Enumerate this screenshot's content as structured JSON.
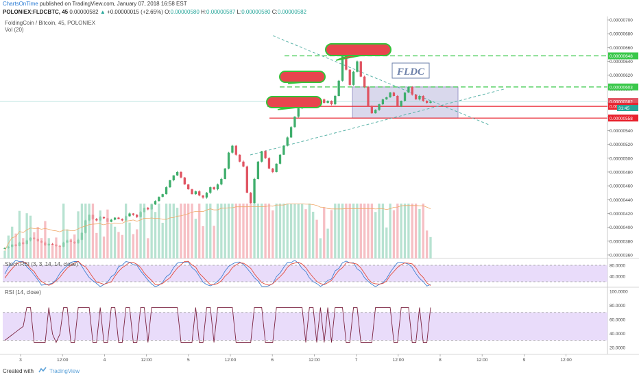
{
  "header": {
    "publisher": "ChartsOnTime",
    "published_text": "published on TradingView.com, January 07, 2018 16:58 EST",
    "symbol": "POLONIEX:FLDCBTC, 45",
    "price": "0.00000582",
    "change": "+0.00000015 (+2.65%)",
    "open_label": "O:",
    "open": "0.00000580",
    "high_label": "H:",
    "high": "0.00000587",
    "low_label": "L:",
    "low": "0.00000580",
    "close_label": "C:",
    "close": "0.00000582"
  },
  "legend": {
    "pair": "FoldingCoin / Bitcoin, 45, POLONIEX",
    "vol": "Vol (20)",
    "stoch": "Stoch RSI (3, 3, 14, 14, close)",
    "rsi": "RSI (14, close)"
  },
  "annotation": {
    "fldc_label": "FLDC",
    "time_badge": "31:45"
  },
  "footer": {
    "created_with": "Created with",
    "brand": "TradingView"
  },
  "colors": {
    "up": "#26a69a",
    "down": "#ef5350",
    "upBody": "#3fae6c",
    "downBody": "#e05462",
    "green_line": "#39c84a",
    "red_line": "#e8232e",
    "trend": "#5ab3a8",
    "rect_fill": "#c9c8e4",
    "osc_fill": "#e9dcfa",
    "stoch_k": "#3f7fd1",
    "stoch_d": "#e34b3b",
    "rsi_line": "#7b2340"
  },
  "chart_data": [
    {
      "type": "candlestick",
      "title": "FoldingCoin / Bitcoin, 45, POLONIEX",
      "x_ticks": [
        "3",
        "12:00",
        "4",
        "12:00",
        "5",
        "12:00",
        "6",
        "12:00",
        "7",
        "12:00",
        "8",
        "12:00",
        "9",
        "12:00"
      ],
      "y_ticks": [
        "0.00000700",
        "0.00000680",
        "0.00000660",
        "0.00000640",
        "0.00000620",
        "0.00000600",
        "0.00000580",
        "0.00000560",
        "0.00000540",
        "0.00000520",
        "0.00000500",
        "0.00000480",
        "0.00000460",
        "0.00000440",
        "0.00000420",
        "0.00000400",
        "0.00000380",
        "0.00000360"
      ],
      "ylim": [
        3.55e-06,
        7.05e-06
      ],
      "price_labels": [
        {
          "value": 6.48e-06,
          "text": "0.00000648",
          "color": "#39c84a"
        },
        {
          "value": 6.03e-06,
          "text": "0.00000603",
          "color": "#39c84a"
        },
        {
          "value": 5.82e-06,
          "text": "0.00000582",
          "color": "#e05462"
        },
        {
          "value": 5.75e-06,
          "text": "0.00000575",
          "color": "#e8232e"
        },
        {
          "value": 5.58e-06,
          "text": "0.00000558",
          "color": "#e8232e"
        }
      ],
      "horizontal_levels": [
        {
          "value": 6.48e-06,
          "style": "dashed",
          "color": "green"
        },
        {
          "value": 6.03e-06,
          "style": "dashed",
          "color": "green"
        },
        {
          "value": 5.75e-06,
          "style": "solid",
          "color": "red"
        },
        {
          "value": 5.58e-06,
          "style": "solid",
          "color": "red"
        }
      ],
      "closes": [
        3.7e-06,
        3.72e-06,
        3.75e-06,
        3.73e-06,
        3.78e-06,
        3.76e-06,
        3.81e-06,
        3.85e-06,
        3.83e-06,
        3.8e-06,
        3.78e-06,
        3.74e-06,
        3.76e-06,
        3.75e-06,
        3.73e-06,
        3.72e-06,
        3.78e-06,
        3.81e-06,
        3.79e-06,
        3.77e-06,
        3.82e-06,
        3.92e-06,
        4.1e-06,
        4.18e-06,
        4.12e-06,
        4.1e-06,
        4.15e-06,
        4.13e-06,
        4.08e-06,
        4.11e-06,
        4.14e-06,
        4.12e-06,
        4.1e-06,
        4.16e-06,
        4.2e-06,
        4.18e-06,
        4.15e-06,
        4.22e-06,
        4.28e-06,
        4.26e-06,
        4.33e-06,
        4.38e-06,
        4.44e-06,
        4.48e-06,
        4.58e-06,
        4.68e-06,
        4.75e-06,
        4.8e-06,
        4.72e-06,
        4.62e-06,
        4.55e-06,
        4.48e-06,
        4.52e-06,
        4.46e-06,
        4.43e-06,
        4.5e-06,
        4.58e-06,
        4.55e-06,
        4.62e-06,
        4.7e-06,
        4.85e-06,
        5.08e-06,
        5.18e-06,
        5.05e-06,
        4.95e-06,
        4.88e-06,
        4.5e-06,
        4.35e-06,
        4.7e-06,
        4.95e-06,
        5.1e-06,
        5e-06,
        4.85e-06,
        4.8e-06,
        4.92e-06,
        5.05e-06,
        5.18e-06,
        5.3e-06,
        5.45e-06,
        5.6e-06,
        5.72e-06,
        5.8e-06,
        5.75e-06,
        5.82e-06,
        5.87e-06,
        5.83e-06,
        5.85e-06,
        5.8e-06,
        5.83e-06,
        5.78e-06,
        5.9e-06,
        6.12e-06,
        6.48e-06,
        6.28e-06,
        6.06e-06,
        6.25e-06,
        6.4e-06,
        6.18e-06,
        6.03e-06,
        5.75e-06,
        5.65e-06,
        5.7e-06,
        5.78e-06,
        5.85e-06,
        5.88e-06,
        5.95e-06,
        5.9e-06,
        5.75e-06,
        5.83e-06,
        5.95e-06,
        6.03e-06,
        5.92e-06,
        5.85e-06,
        5.9e-06,
        5.83e-06,
        5.8e-06,
        5.82e-06
      ],
      "volume_ylim": [
        0,
        60
      ],
      "stoch_rsi": {
        "ticks": [
          "80.0000",
          "40.0000"
        ],
        "ylim": [
          0,
          100
        ]
      },
      "rsi": {
        "ticks": [
          "100.0000",
          "80.0000",
          "60.0000",
          "40.0000",
          "20.0000"
        ],
        "ylim": [
          10,
          105
        ],
        "band": [
          30,
          70
        ]
      }
    }
  ]
}
